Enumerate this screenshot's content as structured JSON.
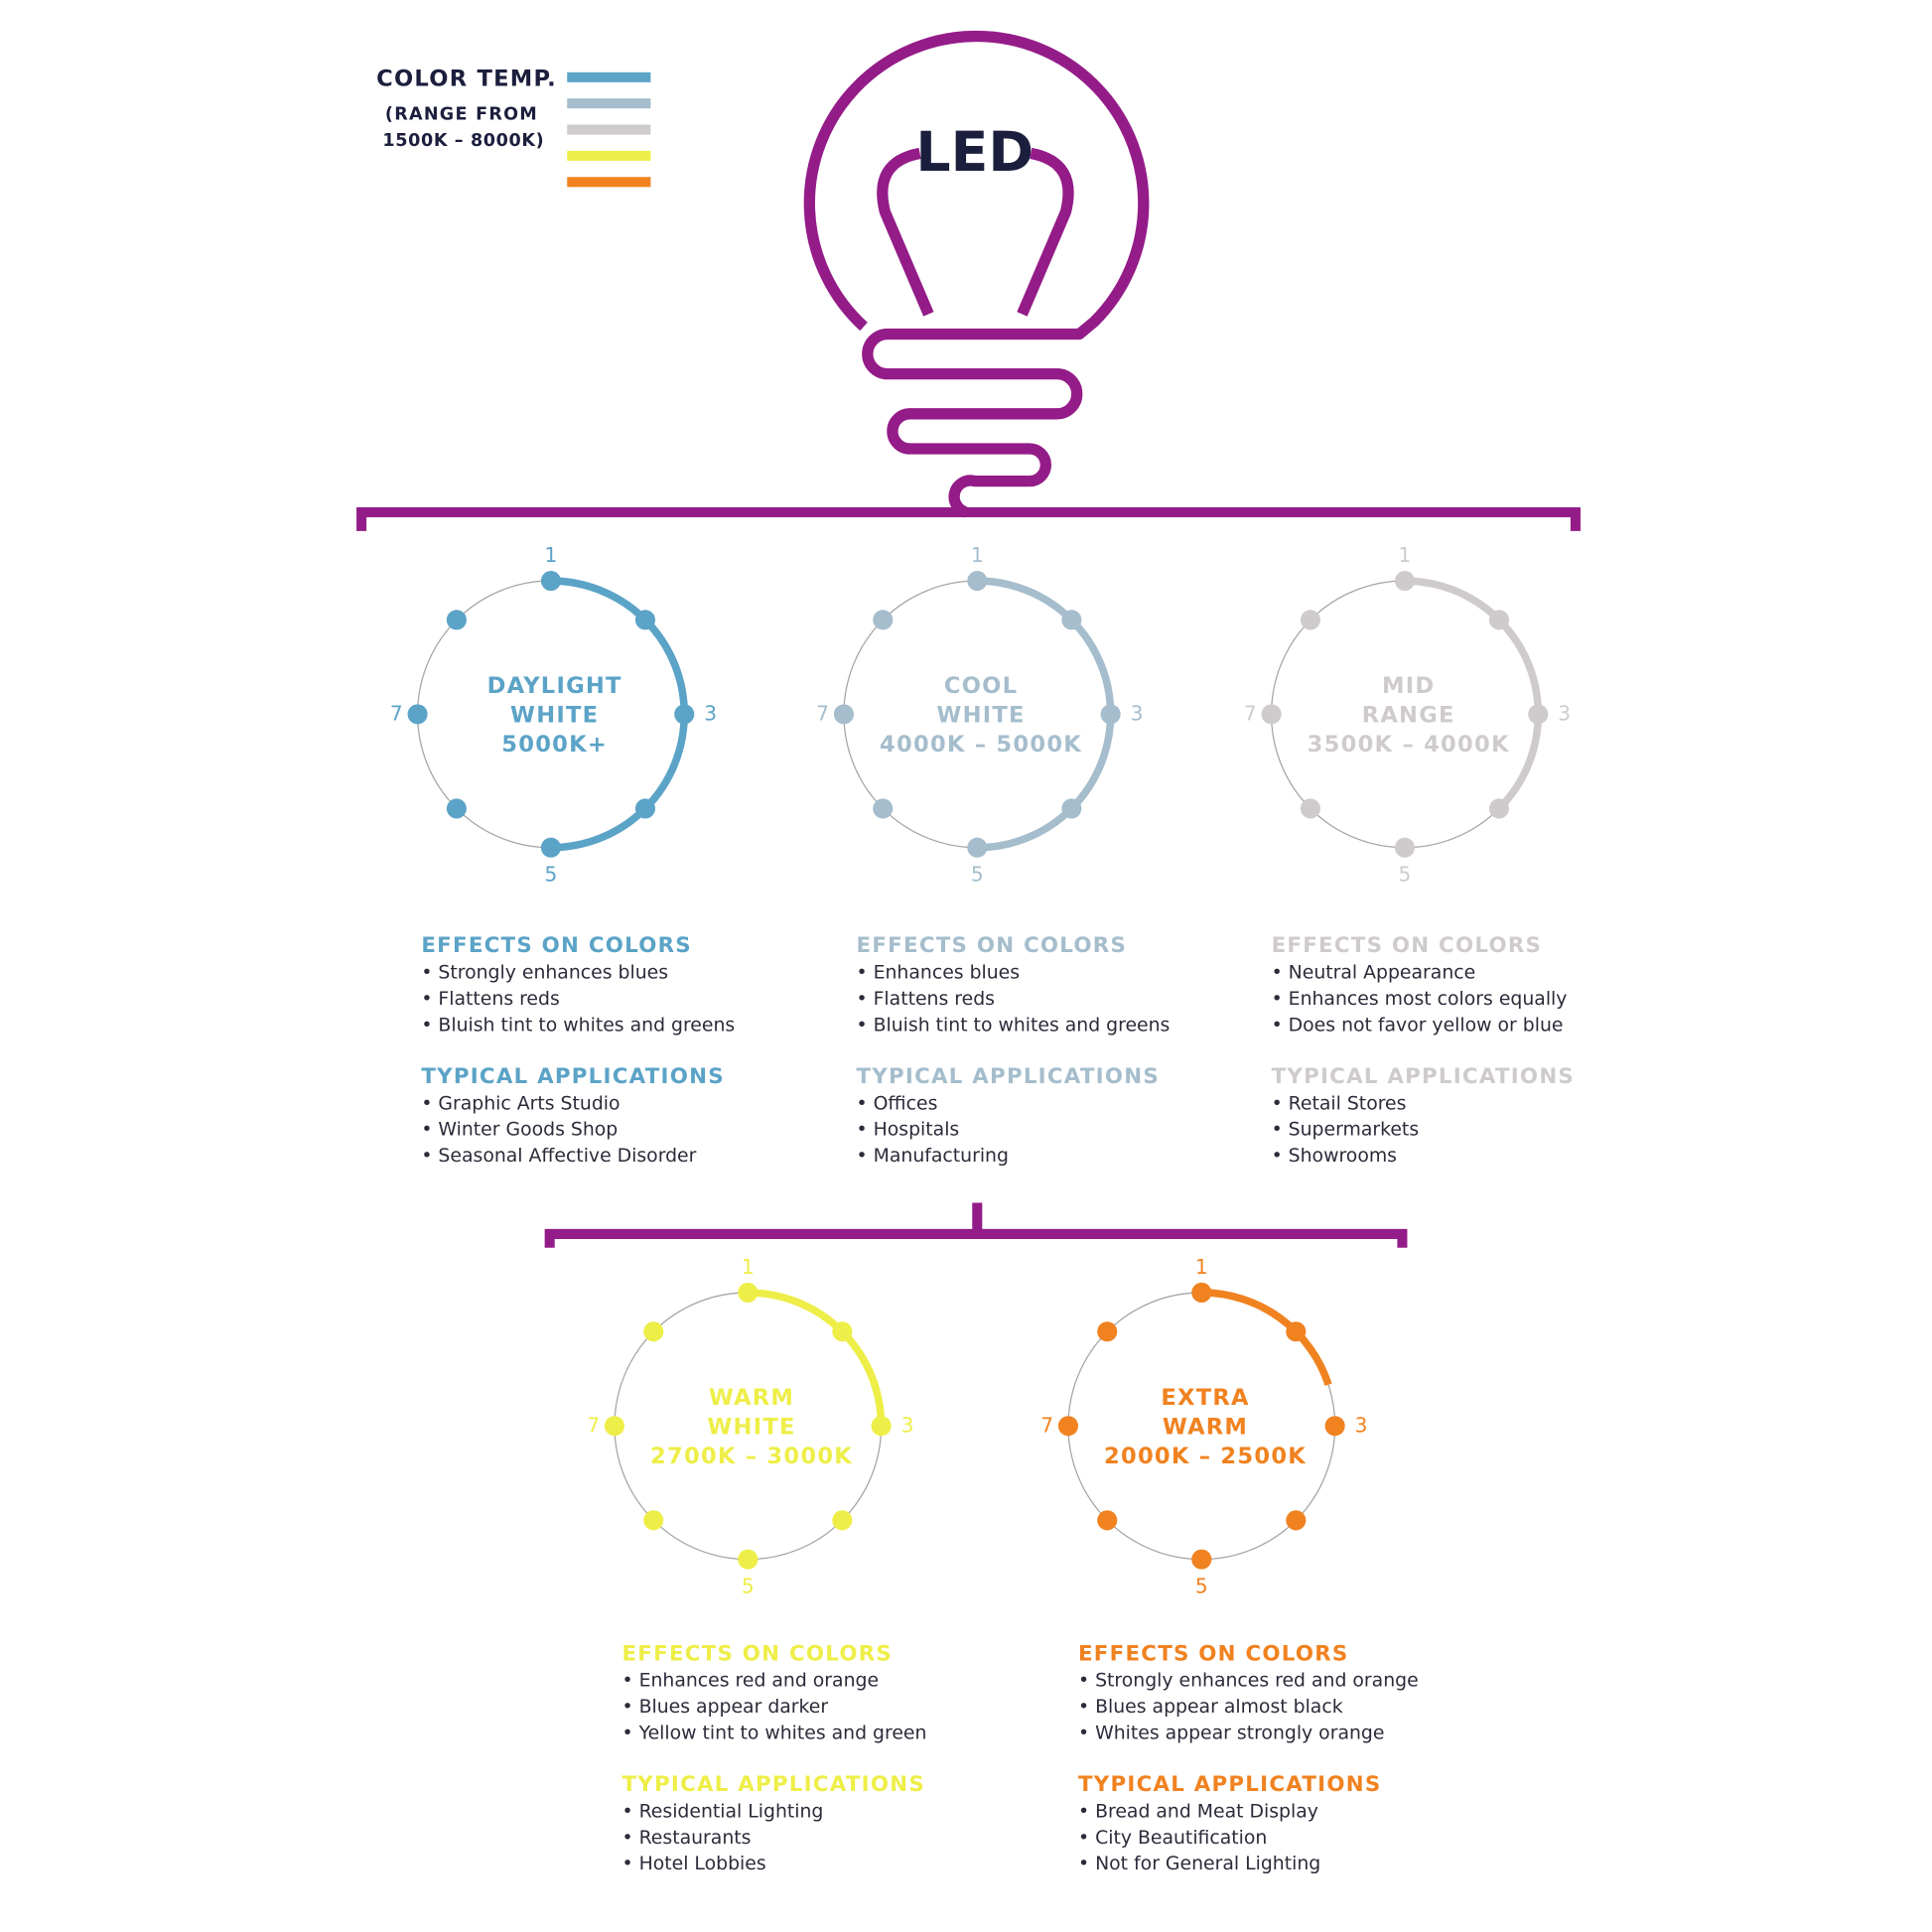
{
  "colors": {
    "purple": "#941c88",
    "navy": "#1b1e3c",
    "ring": "#a5a5a5"
  },
  "legend": {
    "title": "COLOR TEMP.",
    "line1": "(RANGE FROM",
    "line2": "1500K – 8000K)",
    "swatches": [
      "#5ba3c7",
      "#a5bdcc",
      "#cfcbcd",
      "#eeee48",
      "#f08220"
    ]
  },
  "bulb": {
    "label": "LED"
  },
  "scale_labels": [
    "1",
    "3",
    "5",
    "7"
  ],
  "scale_points": 8,
  "panels": [
    {
      "title": [
        "DAYLIGHT",
        "WHITE",
        "5000K+"
      ],
      "color": "#5ba3c7",
      "level": 5,
      "effects_heading": "EFFECTS ON COLORS",
      "effects": [
        "• Strongly enhances blues",
        "• Flattens reds",
        "• Bluish tint to whites and greens"
      ],
      "apps_heading": "TYPICAL APPLICATIONS",
      "apps": [
        "• Graphic Arts Studio",
        "• Winter Goods Shop",
        "• Seasonal Affective Disorder"
      ]
    },
    {
      "title": [
        "COOL",
        "WHITE",
        "4000K – 5000K"
      ],
      "color": "#a5bdcc",
      "level": 5,
      "effects_heading": "EFFECTS ON COLORS",
      "effects": [
        "• Enhances blues",
        "• Flattens reds",
        "• Bluish tint to whites and greens"
      ],
      "apps_heading": "TYPICAL APPLICATIONS",
      "apps": [
        "• Offices",
        "• Hospitals",
        "• Manufacturing"
      ]
    },
    {
      "title": [
        "MID",
        "RANGE",
        "3500K – 4000K"
      ],
      "color": "#cfcbcd",
      "level": 4,
      "effects_heading": "EFFECTS ON COLORS",
      "effects": [
        "• Neutral Appearance",
        "• Enhances most colors equally",
        "• Does not favor yellow or blue"
      ],
      "apps_heading": "TYPICAL APPLICATIONS",
      "apps": [
        "• Retail Stores",
        "• Supermarkets",
        "• Showrooms"
      ]
    },
    {
      "title": [
        "WARM",
        "WHITE",
        "2700K – 3000K"
      ],
      "color": "#eeee48",
      "level": 3,
      "effects_heading": "EFFECTS ON COLORS",
      "effects": [
        "• Enhances red and orange",
        "• Blues appear darker",
        "• Yellow tint to whites and green"
      ],
      "apps_heading": "TYPICAL APPLICATIONS",
      "apps": [
        "• Residential Lighting",
        "• Restaurants",
        "• Hotel Lobbies"
      ]
    },
    {
      "title": [
        "EXTRA",
        "WARM",
        "2000K – 2500K"
      ],
      "color": "#f08220",
      "level": 2.6,
      "effects_heading": "EFFECTS ON COLORS",
      "effects": [
        "• Strongly enhances red and orange",
        "• Blues appear almost black",
        "• Whites appear strongly orange"
      ],
      "apps_heading": "TYPICAL APPLICATIONS",
      "apps": [
        "• Bread and Meat Display",
        "• City Beautification",
        "• Not for General Lighting"
      ]
    }
  ]
}
